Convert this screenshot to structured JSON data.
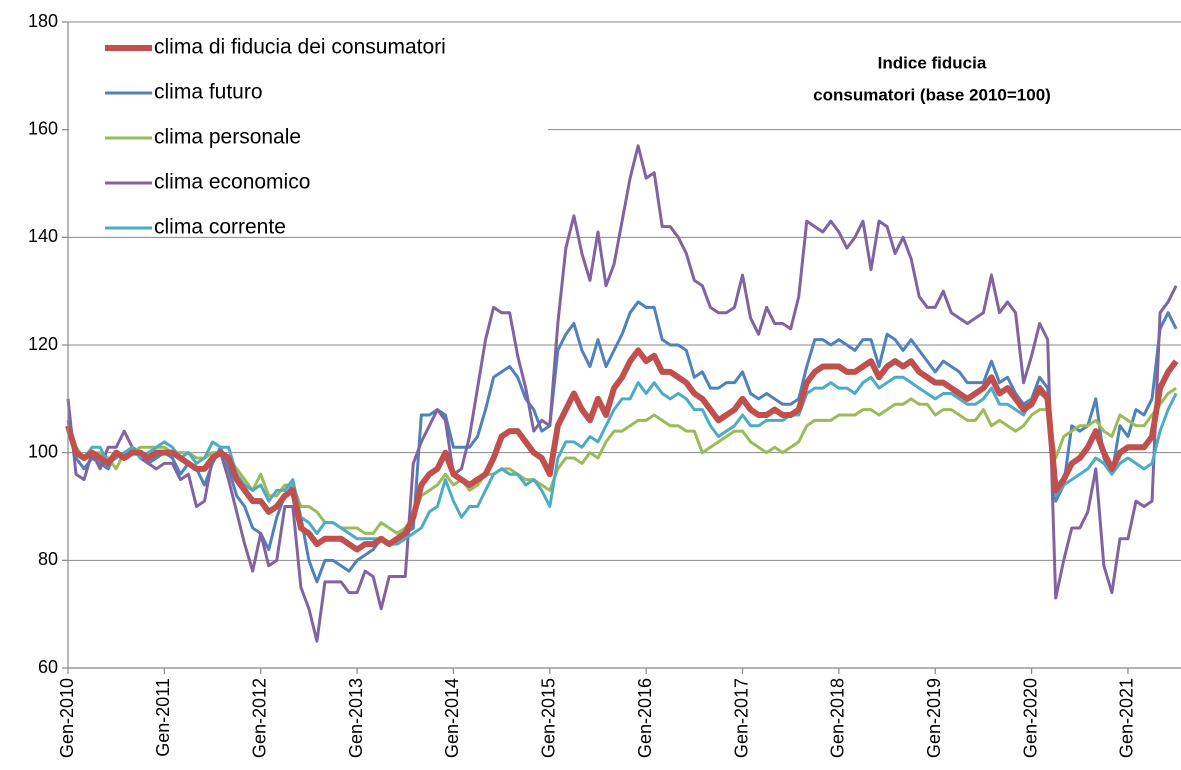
{
  "chart_data": {
    "type": "line",
    "title": [
      "Indice fiducia",
      "consumatori (base 2010=100)"
    ],
    "categories": [
      "Gen-2010",
      null,
      null,
      null,
      null,
      null,
      null,
      null,
      null,
      null,
      null,
      null,
      "Gen-2011",
      null,
      null,
      null,
      null,
      null,
      null,
      null,
      null,
      null,
      null,
      null,
      "Gen-2012",
      null,
      null,
      null,
      null,
      null,
      null,
      null,
      null,
      null,
      null,
      null,
      "Gen-2013",
      null,
      null,
      null,
      null,
      null,
      null,
      null,
      null,
      null,
      null,
      null,
      "Gen-2014",
      null,
      null,
      null,
      null,
      null,
      null,
      null,
      null,
      null,
      null,
      null,
      "Gen-2015",
      null,
      null,
      null,
      null,
      null,
      null,
      null,
      null,
      null,
      null,
      null,
      "Gen-2016",
      null,
      null,
      null,
      null,
      null,
      null,
      null,
      null,
      null,
      null,
      null,
      "Gen-2017",
      null,
      null,
      null,
      null,
      null,
      null,
      null,
      null,
      null,
      null,
      null,
      "Gen-2018",
      null,
      null,
      null,
      null,
      null,
      null,
      null,
      null,
      null,
      null,
      null,
      "Gen-2019",
      null,
      null,
      null,
      null,
      null,
      null,
      null,
      null,
      null,
      null,
      null,
      "Gen-2020",
      null,
      null,
      null,
      null,
      null,
      null,
      null,
      null,
      null,
      null,
      null,
      "Gen-2021",
      null,
      null,
      null,
      null,
      null,
      null
    ],
    "series": [
      {
        "name": "clima di fiducia dei consumatori",
        "color": "#c0504d",
        "values": [
          105,
          100,
          99,
          100,
          99,
          98,
          100,
          99,
          100,
          100,
          99,
          100,
          100,
          100,
          99,
          98,
          97,
          97,
          99,
          100,
          99,
          95,
          93,
          91,
          91,
          89,
          90,
          92,
          93,
          86,
          85,
          83,
          84,
          84,
          84,
          83,
          82,
          83,
          83,
          84,
          83,
          84,
          85,
          88,
          94,
          96,
          97,
          100,
          96,
          95,
          94,
          95,
          96,
          99,
          103,
          104,
          104,
          102,
          100,
          99,
          96,
          105,
          108,
          111,
          108,
          106,
          110,
          107,
          112,
          114,
          117,
          119,
          117,
          118,
          115,
          115,
          114,
          113,
          111,
          110,
          108,
          106,
          107,
          108,
          110,
          108,
          107,
          107,
          108,
          107,
          107,
          108,
          113,
          115,
          116,
          116,
          116,
          115,
          115,
          116,
          117,
          114,
          116,
          117,
          116,
          117,
          115,
          114,
          113,
          113,
          112,
          111,
          110,
          111,
          112,
          114,
          111,
          112,
          110,
          108,
          109,
          112,
          110,
          93,
          95,
          98,
          99,
          101,
          104,
          100,
          97,
          100,
          101,
          101,
          101,
          103,
          112,
          115,
          117
        ]
      },
      {
        "name": "clima futuro",
        "color": "#4f81bd",
        "values": [
          106,
          99,
          97,
          99,
          98,
          97,
          100,
          99,
          101,
          100,
          98,
          99,
          100,
          99,
          96,
          98,
          97,
          94,
          98,
          101,
          97,
          92,
          90,
          86,
          85,
          82,
          88,
          92,
          94,
          88,
          80,
          76,
          80,
          80,
          79,
          78,
          80,
          81,
          82,
          84,
          83,
          84,
          85,
          86,
          107,
          107,
          108,
          107,
          101,
          101,
          101,
          103,
          108,
          114,
          115,
          116,
          114,
          110,
          108,
          104,
          105,
          119,
          122,
          124,
          119,
          116,
          121,
          116,
          119,
          122,
          126,
          128,
          127,
          127,
          121,
          120,
          120,
          119,
          114,
          115,
          112,
          112,
          113,
          113,
          115,
          111,
          110,
          111,
          110,
          109,
          109,
          110,
          116,
          121,
          121,
          120,
          121,
          120,
          119,
          121,
          121,
          116,
          122,
          121,
          119,
          121,
          119,
          117,
          115,
          117,
          116,
          115,
          113,
          113,
          113,
          117,
          113,
          114,
          111,
          109,
          110,
          114,
          112,
          91,
          94,
          105,
          104,
          105,
          110,
          99,
          96,
          105,
          103,
          108,
          107,
          110,
          123,
          126,
          123
        ]
      },
      {
        "name": "clima personale",
        "color": "#9bbb59",
        "values": [
          104,
          101,
          99,
          100,
          100,
          99,
          97,
          100,
          100,
          101,
          101,
          101,
          101,
          100,
          100,
          100,
          99,
          99,
          100,
          100,
          99,
          97,
          95,
          93,
          96,
          92,
          92,
          94,
          94,
          90,
          90,
          89,
          87,
          87,
          86,
          86,
          86,
          85,
          85,
          87,
          86,
          85,
          86,
          88,
          92,
          93,
          94,
          96,
          94,
          95,
          93,
          94,
          96,
          96,
          97,
          97,
          96,
          95,
          95,
          94,
          93,
          97,
          99,
          99,
          98,
          100,
          99,
          102,
          104,
          104,
          105,
          106,
          106,
          107,
          106,
          105,
          105,
          104,
          104,
          100,
          101,
          102,
          103,
          104,
          104,
          102,
          101,
          100,
          101,
          100,
          101,
          102,
          105,
          106,
          106,
          106,
          107,
          107,
          107,
          108,
          108,
          107,
          108,
          109,
          109,
          110,
          109,
          109,
          107,
          108,
          108,
          107,
          106,
          106,
          108,
          105,
          106,
          105,
          104,
          105,
          107,
          108,
          108,
          99,
          103,
          104,
          105,
          105,
          106,
          104,
          103,
          107,
          106,
          105,
          105,
          107,
          109,
          111,
          112
        ]
      },
      {
        "name": "clima economico",
        "color": "#8064a2",
        "values": [
          110,
          96,
          95,
          100,
          97,
          101,
          101,
          104,
          101,
          99,
          98,
          97,
          98,
          98,
          95,
          96,
          90,
          91,
          99,
          100,
          95,
          89,
          83,
          78,
          85,
          79,
          80,
          90,
          90,
          75,
          71,
          65,
          76,
          76,
          76,
          74,
          74,
          78,
          77,
          71,
          77,
          77,
          77,
          98,
          102,
          105,
          108,
          106,
          96,
          97,
          103,
          112,
          121,
          127,
          126,
          126,
          118,
          112,
          104,
          106,
          105,
          124,
          138,
          144,
          137,
          132,
          141,
          131,
          135,
          143,
          151,
          157,
          151,
          152,
          142,
          142,
          140,
          137,
          132,
          131,
          127,
          126,
          126,
          127,
          133,
          125,
          122,
          127,
          124,
          124,
          123,
          129,
          143,
          142,
          141,
          143,
          141,
          138,
          140,
          143,
          134,
          143,
          142,
          137,
          140,
          136,
          129,
          127,
          127,
          130,
          126,
          125,
          124,
          125,
          126,
          133,
          126,
          128,
          126,
          113,
          118,
          124,
          121,
          73,
          80,
          86,
          86,
          89,
          97,
          79,
          74,
          84,
          84,
          91,
          90,
          91,
          126,
          128,
          131
        ]
      },
      {
        "name": "clima corrente",
        "color": "#4bacc6",
        "values": [
          104,
          100,
          99,
          101,
          101,
          98,
          99,
          100,
          101,
          99,
          100,
          101,
          102,
          101,
          99,
          100,
          98,
          99,
          102,
          101,
          101,
          96,
          94,
          93,
          94,
          91,
          93,
          93,
          95,
          88,
          87,
          85,
          87,
          87,
          86,
          85,
          84,
          84,
          84,
          84,
          83,
          83,
          84,
          85,
          86,
          89,
          90,
          95,
          91,
          88,
          90,
          90,
          93,
          96,
          97,
          96,
          96,
          94,
          95,
          93,
          90,
          99,
          102,
          102,
          101,
          103,
          102,
          105,
          108,
          110,
          110,
          113,
          111,
          113,
          111,
          110,
          111,
          110,
          108,
          108,
          105,
          103,
          104,
          105,
          107,
          105,
          105,
          106,
          106,
          106,
          107,
          107,
          111,
          112,
          112,
          113,
          112,
          112,
          111,
          113,
          114,
          112,
          113,
          114,
          114,
          113,
          112,
          111,
          110,
          111,
          111,
          110,
          109,
          109,
          110,
          112,
          109,
          109,
          108,
          107,
          110,
          111,
          110,
          92,
          94,
          95,
          96,
          97,
          99,
          98,
          96,
          98,
          99,
          98,
          97,
          98,
          104,
          108,
          111
        ]
      }
    ],
    "ylim": [
      60,
      180
    ],
    "yticks": [
      60,
      80,
      100,
      120,
      140,
      160,
      180
    ],
    "grid": true,
    "legend": "top-left"
  }
}
